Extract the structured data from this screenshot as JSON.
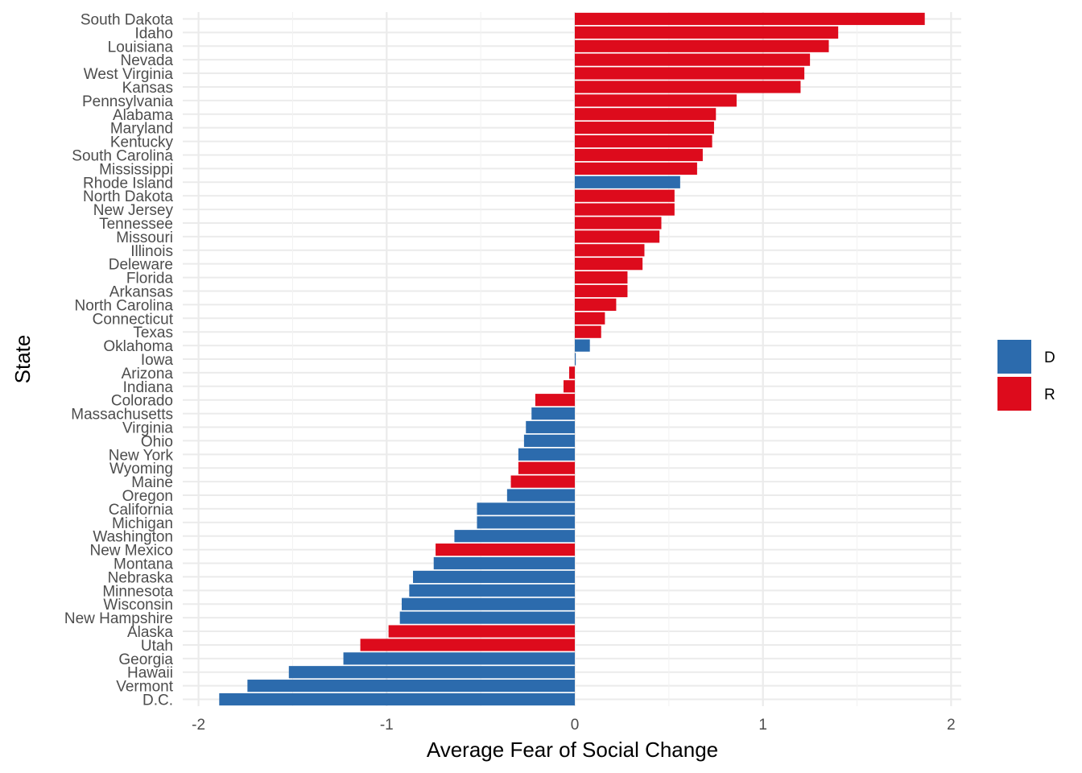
{
  "chart_data": {
    "type": "bar",
    "orientation": "horizontal",
    "xlabel": "Average Fear of Social Change",
    "ylabel": "State",
    "xlim": [
      -1.95,
      2.05
    ],
    "xticks": [
      -2,
      -1,
      0,
      1,
      2
    ],
    "xtick_labels": [
      "-2",
      "-1",
      "0",
      "1",
      "2"
    ],
    "grid": true,
    "legend_position": "right",
    "legend": [
      {
        "key": "D",
        "label": "D",
        "color": "#2c6bad"
      },
      {
        "key": "R",
        "label": "R",
        "color": "#dd0b1c"
      }
    ],
    "bars": [
      {
        "state": "South Dakota",
        "value": 1.86,
        "party": "R"
      },
      {
        "state": "Idaho",
        "value": 1.4,
        "party": "R"
      },
      {
        "state": "Louisiana",
        "value": 1.35,
        "party": "R"
      },
      {
        "state": "Nevada",
        "value": 1.25,
        "party": "R"
      },
      {
        "state": "West Virginia",
        "value": 1.22,
        "party": "R"
      },
      {
        "state": "Kansas",
        "value": 1.2,
        "party": "R"
      },
      {
        "state": "Pennsylvania",
        "value": 0.86,
        "party": "R"
      },
      {
        "state": "Alabama",
        "value": 0.75,
        "party": "R"
      },
      {
        "state": "Maryland",
        "value": 0.74,
        "party": "R"
      },
      {
        "state": "Kentucky",
        "value": 0.73,
        "party": "R"
      },
      {
        "state": "South Carolina",
        "value": 0.68,
        "party": "R"
      },
      {
        "state": "Mississippi",
        "value": 0.65,
        "party": "R"
      },
      {
        "state": "Rhode Island",
        "value": 0.56,
        "party": "D"
      },
      {
        "state": "North Dakota",
        "value": 0.53,
        "party": "R"
      },
      {
        "state": "New Jersey",
        "value": 0.53,
        "party": "R"
      },
      {
        "state": "Tennessee",
        "value": 0.46,
        "party": "R"
      },
      {
        "state": "Missouri",
        "value": 0.45,
        "party": "R"
      },
      {
        "state": "Illinois",
        "value": 0.37,
        "party": "R"
      },
      {
        "state": "Deleware",
        "value": 0.36,
        "party": "R"
      },
      {
        "state": "Florida",
        "value": 0.28,
        "party": "R"
      },
      {
        "state": "Arkansas",
        "value": 0.28,
        "party": "R"
      },
      {
        "state": "North Carolina",
        "value": 0.22,
        "party": "R"
      },
      {
        "state": "Connecticut",
        "value": 0.16,
        "party": "R"
      },
      {
        "state": "Texas",
        "value": 0.14,
        "party": "R"
      },
      {
        "state": "Oklahoma",
        "value": 0.08,
        "party": "D"
      },
      {
        "state": "Iowa",
        "value": 0.005,
        "party": "D"
      },
      {
        "state": "Arizona",
        "value": -0.03,
        "party": "R"
      },
      {
        "state": "Indiana",
        "value": -0.06,
        "party": "R"
      },
      {
        "state": "Colorado",
        "value": -0.21,
        "party": "R"
      },
      {
        "state": "Massachusetts",
        "value": -0.23,
        "party": "D"
      },
      {
        "state": "Virginia",
        "value": -0.26,
        "party": "D"
      },
      {
        "state": "Ohio",
        "value": -0.27,
        "party": "D"
      },
      {
        "state": "New York",
        "value": -0.3,
        "party": "D"
      },
      {
        "state": "Wyoming",
        "value": -0.3,
        "party": "R"
      },
      {
        "state": "Maine",
        "value": -0.34,
        "party": "R"
      },
      {
        "state": "Oregon",
        "value": -0.36,
        "party": "D"
      },
      {
        "state": "California",
        "value": -0.52,
        "party": "D"
      },
      {
        "state": "Michigan",
        "value": -0.52,
        "party": "D"
      },
      {
        "state": "Washington",
        "value": -0.64,
        "party": "D"
      },
      {
        "state": "New Mexico",
        "value": -0.74,
        "party": "R"
      },
      {
        "state": "Montana",
        "value": -0.75,
        "party": "D"
      },
      {
        "state": "Nebraska",
        "value": -0.86,
        "party": "D"
      },
      {
        "state": "Minnesota",
        "value": -0.88,
        "party": "D"
      },
      {
        "state": "Wisconsin",
        "value": -0.92,
        "party": "D"
      },
      {
        "state": "New Hampshire",
        "value": -0.93,
        "party": "D"
      },
      {
        "state": "Alaska",
        "value": -0.99,
        "party": "R"
      },
      {
        "state": "Utah",
        "value": -1.14,
        "party": "R"
      },
      {
        "state": "Georgia",
        "value": -1.23,
        "party": "D"
      },
      {
        "state": "Hawaii",
        "value": -1.52,
        "party": "D"
      },
      {
        "state": "Vermont",
        "value": -1.74,
        "party": "D"
      },
      {
        "state": "D.C.",
        "value": -1.89,
        "party": "D"
      }
    ]
  }
}
